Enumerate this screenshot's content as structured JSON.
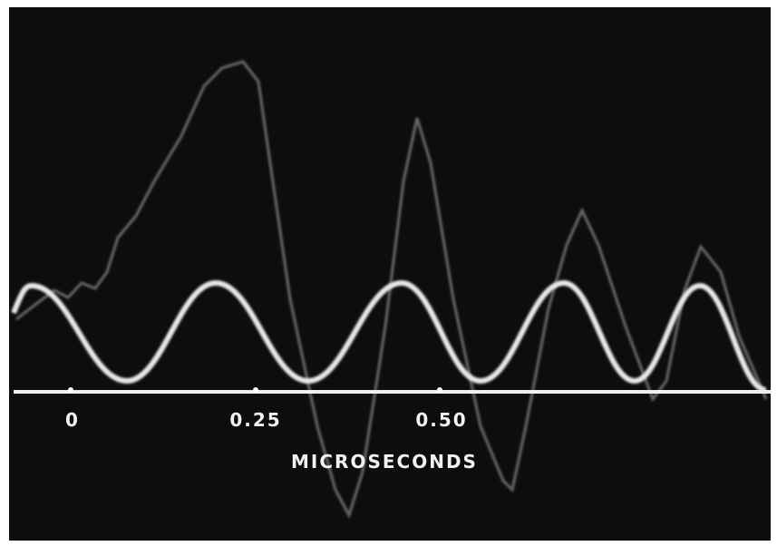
{
  "axis": {
    "ticks": [
      "0",
      "0.25",
      "0.50"
    ],
    "label": "MICROSECONDS"
  }
}
